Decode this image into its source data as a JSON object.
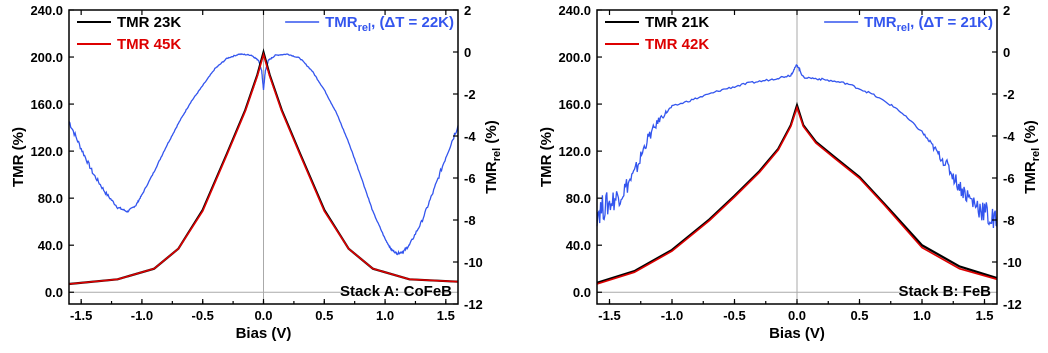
{
  "chart_data": [
    {
      "type": "line",
      "panel_label": "Stack A: CoFeB",
      "xlabel": "Bias (V)",
      "ylabel": "TMR (%)",
      "y2label_base": "TMR",
      "y2label_sub": "rel",
      "y2label_tail": " (%)",
      "xlim": [
        -1.6,
        1.6
      ],
      "ylim": [
        -10,
        240
      ],
      "y2lim": [
        -12,
        2
      ],
      "x_ticks": [
        -1.5,
        -1.0,
        -0.5,
        0.0,
        0.5,
        1.0,
        1.5
      ],
      "x_tick_labels": [
        "-1.5",
        "-1.0",
        "-0.5",
        "0.0",
        "0.5",
        "1.0",
        "1.5"
      ],
      "y_ticks": [
        0,
        40,
        80,
        120,
        160,
        200,
        240
      ],
      "y_tick_labels": [
        "0.0",
        "40.0",
        "80.0",
        "120.0",
        "160.0",
        "200.0",
        "240.0"
      ],
      "y2_ticks": [
        -12,
        -10,
        -8,
        -6,
        -4,
        -2,
        0,
        2
      ],
      "y2_tick_labels": [
        "-12",
        "-10",
        "-8",
        "-6",
        "-4",
        "-2",
        "0",
        "2"
      ],
      "zero_lines": true,
      "series": [
        {
          "name": "TMR 23K",
          "color": "#000000",
          "axis": "left",
          "x": [
            -1.6,
            -1.2,
            -0.9,
            -0.7,
            -0.5,
            -0.3,
            -0.15,
            -0.05,
            0.0,
            0.05,
            0.15,
            0.3,
            0.5,
            0.7,
            0.9,
            1.2,
            1.6
          ],
          "y": [
            7,
            11,
            20,
            37,
            70,
            118,
            155,
            185,
            204,
            185,
            155,
            118,
            70,
            37,
            20,
            11,
            9
          ]
        },
        {
          "name": "TMR 45K",
          "color": "#dd0000",
          "axis": "left",
          "x": [
            -1.6,
            -1.2,
            -0.9,
            -0.7,
            -0.5,
            -0.3,
            -0.15,
            -0.05,
            0.0,
            0.05,
            0.15,
            0.3,
            0.5,
            0.7,
            0.9,
            1.2,
            1.6
          ],
          "y": [
            7,
            11,
            20,
            37,
            69,
            117,
            154,
            184,
            202,
            184,
            154,
            117,
            69,
            37,
            20,
            11,
            9
          ]
        }
      ],
      "y2_series": [
        {
          "name_base": "TMR",
          "name_sub": "rel",
          "name_tail": ", (ΔT = 22K)",
          "color": "#3355ee",
          "axis": "right",
          "x": [
            -1.6,
            -1.5,
            -1.4,
            -1.3,
            -1.2,
            -1.12,
            -1.05,
            -1.0,
            -0.9,
            -0.8,
            -0.7,
            -0.6,
            -0.5,
            -0.4,
            -0.3,
            -0.2,
            -0.1,
            -0.04,
            -0.015,
            0.0,
            0.015,
            0.04,
            0.1,
            0.2,
            0.3,
            0.4,
            0.5,
            0.6,
            0.7,
            0.8,
            0.9,
            1.0,
            1.05,
            1.1,
            1.15,
            1.2,
            1.3,
            1.4,
            1.5,
            1.6
          ],
          "y": [
            -3.3,
            -4.6,
            -5.8,
            -6.7,
            -7.4,
            -7.6,
            -7.3,
            -6.8,
            -5.7,
            -4.5,
            -3.4,
            -2.4,
            -1.6,
            -0.8,
            -0.3,
            -0.1,
            -0.15,
            -0.4,
            -0.9,
            -1.8,
            -0.9,
            -0.4,
            -0.15,
            -0.1,
            -0.3,
            -0.9,
            -1.8,
            -2.9,
            -4.3,
            -5.9,
            -7.6,
            -8.9,
            -9.4,
            -9.6,
            -9.5,
            -9.2,
            -8.1,
            -6.6,
            -5.0,
            -3.5
          ]
        }
      ]
    },
    {
      "type": "line",
      "panel_label": "Stack B: FeB",
      "xlabel": "Bias (V)",
      "ylabel": "TMR (%)",
      "y2label_base": "TMR",
      "y2label_sub": "rel",
      "y2label_tail": " (%)",
      "xlim": [
        -1.6,
        1.6
      ],
      "ylim": [
        -10,
        240
      ],
      "y2lim": [
        -12,
        2
      ],
      "x_ticks": [
        -1.5,
        -1.0,
        -0.5,
        0.0,
        0.5,
        1.0,
        1.5
      ],
      "x_tick_labels": [
        "-1.5",
        "-1.0",
        "-0.5",
        "0.0",
        "0.5",
        "1.0",
        "1.5"
      ],
      "y_ticks": [
        0,
        40,
        80,
        120,
        160,
        200,
        240
      ],
      "y_tick_labels": [
        "0.0",
        "40.0",
        "80.0",
        "120.0",
        "160.0",
        "200.0",
        "240.0"
      ],
      "y2_ticks": [
        -12,
        -10,
        -8,
        -6,
        -4,
        -2,
        0,
        2
      ],
      "y2_tick_labels": [
        "-12",
        "-10",
        "-8",
        "-6",
        "-4",
        "-2",
        "0",
        "2"
      ],
      "zero_lines": true,
      "series": [
        {
          "name": "TMR 21K",
          "color": "#000000",
          "axis": "left",
          "x": [
            -1.6,
            -1.3,
            -1.0,
            -0.7,
            -0.5,
            -0.3,
            -0.15,
            -0.05,
            0.0,
            0.05,
            0.15,
            0.3,
            0.5,
            0.7,
            1.0,
            1.3,
            1.6
          ],
          "y": [
            8,
            18,
            36,
            62,
            82,
            103,
            122,
            142,
            159,
            142,
            128,
            115,
            98,
            75,
            40,
            22,
            12
          ]
        },
        {
          "name": "TMR 42K",
          "color": "#dd0000",
          "axis": "left",
          "x": [
            -1.6,
            -1.3,
            -1.0,
            -0.7,
            -0.5,
            -0.3,
            -0.15,
            -0.05,
            0.0,
            0.05,
            0.15,
            0.3,
            0.5,
            0.7,
            1.0,
            1.3,
            1.6
          ],
          "y": [
            7,
            17,
            35,
            61,
            81,
            102,
            121,
            141,
            157,
            141,
            127,
            114,
            97,
            74,
            38,
            20,
            11
          ]
        }
      ],
      "y2_series": [
        {
          "name_base": "TMR",
          "name_sub": "rel",
          "name_tail": ", (ΔT = 21K)",
          "color": "#3355ee",
          "axis": "right",
          "x": [
            -1.6,
            -1.5,
            -1.4,
            -1.3,
            -1.2,
            -1.1,
            -1.0,
            -0.8,
            -0.6,
            -0.4,
            -0.2,
            -0.05,
            0.0,
            0.05,
            0.2,
            0.4,
            0.6,
            0.8,
            1.0,
            1.1,
            1.2,
            1.3,
            1.4,
            1.5,
            1.6
          ],
          "y": [
            -7.6,
            -7.2,
            -6.7,
            -5.8,
            -4.2,
            -3.2,
            -2.6,
            -2.2,
            -1.8,
            -1.5,
            -1.3,
            -1.1,
            -0.6,
            -1.2,
            -1.3,
            -1.5,
            -2.0,
            -2.7,
            -3.8,
            -4.6,
            -5.4,
            -6.4,
            -7.1,
            -7.6,
            -8.3
          ]
        }
      ]
    }
  ]
}
